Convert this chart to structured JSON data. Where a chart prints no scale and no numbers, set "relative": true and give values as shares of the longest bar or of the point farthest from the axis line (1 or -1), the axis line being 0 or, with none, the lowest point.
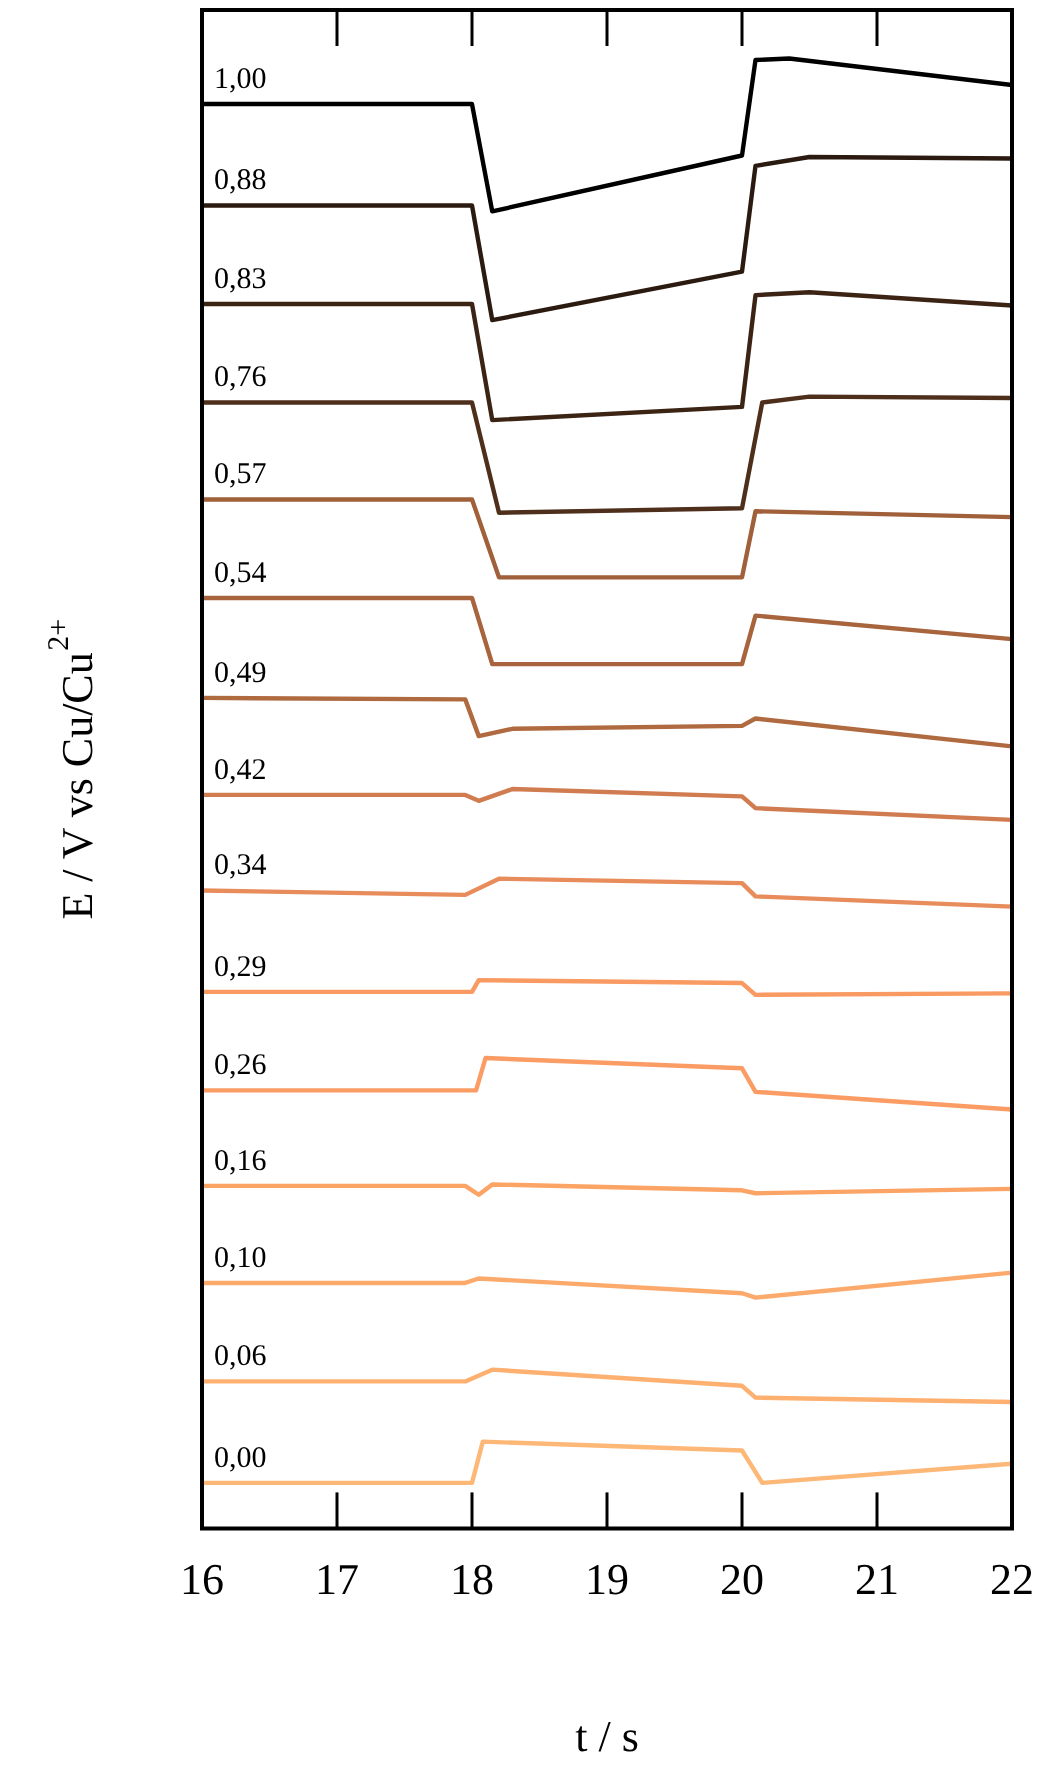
{
  "chart_data": {
    "type": "line",
    "xlabel": "t / s",
    "ylabel": "E / V vs Cu/Cu$^{2+}$",
    "relative": true,
    "xlim": [
      16,
      22
    ],
    "xticks": [
      16,
      17,
      18,
      19,
      20,
      21,
      22
    ],
    "grid": false,
    "marker": "none",
    "line_style": "solid",
    "series": [
      {
        "name": "1,00",
        "color": "#000000",
        "x": [
          16,
          18.0,
          18.15,
          20.0,
          20.1,
          20.35,
          22
        ],
        "values": [
          0.969,
          0.969,
          0.896,
          0.934,
          0.999,
          1.0,
          0.982
        ]
      },
      {
        "name": "0,88",
        "color": "#2a1a10",
        "x": [
          16,
          18.0,
          18.15,
          20.0,
          20.1,
          20.5,
          22
        ],
        "values": [
          0.9,
          0.9,
          0.822,
          0.855,
          0.927,
          0.933,
          0.932
        ]
      },
      {
        "name": "0,83",
        "color": "#3c2414",
        "x": [
          16,
          18.0,
          18.15,
          20.0,
          20.1,
          20.5,
          22
        ],
        "values": [
          0.833,
          0.833,
          0.754,
          0.763,
          0.839,
          0.841,
          0.832
        ]
      },
      {
        "name": "0,76",
        "color": "#4e2f1c",
        "x": [
          16,
          18.0,
          18.2,
          20.0,
          20.15,
          20.5,
          22
        ],
        "values": [
          0.766,
          0.766,
          0.691,
          0.694,
          0.766,
          0.77,
          0.769
        ]
      },
      {
        "name": "0,57",
        "color": "#a0603a",
        "x": [
          16,
          18.0,
          18.2,
          20.0,
          20.1,
          22
        ],
        "values": [
          0.7,
          0.7,
          0.647,
          0.647,
          0.692,
          0.688
        ]
      },
      {
        "name": "0,54",
        "color": "#a8643c",
        "x": [
          16,
          18.0,
          18.15,
          20.0,
          20.1,
          22
        ],
        "values": [
          0.633,
          0.633,
          0.588,
          0.588,
          0.621,
          0.605
        ]
      },
      {
        "name": "0,49",
        "color": "#b06a40",
        "x": [
          16,
          17.95,
          18.05,
          18.3,
          20.0,
          20.1,
          22
        ],
        "values": [
          0.565,
          0.564,
          0.539,
          0.544,
          0.546,
          0.551,
          0.532
        ]
      },
      {
        "name": "0,42",
        "color": "#d07c50",
        "x": [
          16,
          17.95,
          18.05,
          18.3,
          20.0,
          20.1,
          22
        ],
        "values": [
          0.499,
          0.499,
          0.495,
          0.503,
          0.498,
          0.49,
          0.482
        ]
      },
      {
        "name": "0,34",
        "color": "#e88c5c",
        "x": [
          16,
          17.95,
          18.2,
          20.0,
          20.1,
          22
        ],
        "values": [
          0.434,
          0.431,
          0.442,
          0.439,
          0.43,
          0.423
        ]
      },
      {
        "name": "0,29",
        "color": "#f89a62",
        "x": [
          16,
          18.0,
          18.05,
          20.0,
          20.1,
          22
        ],
        "values": [
          0.365,
          0.365,
          0.373,
          0.371,
          0.363,
          0.364
        ]
      },
      {
        "name": "0,26",
        "color": "#fb9c64",
        "x": [
          16,
          18.03,
          18.1,
          20.0,
          20.1,
          22
        ],
        "values": [
          0.298,
          0.298,
          0.32,
          0.313,
          0.297,
          0.285
        ]
      },
      {
        "name": "0,16",
        "color": "#fca466",
        "x": [
          16,
          17.95,
          18.05,
          18.15,
          20.0,
          20.1,
          22
        ],
        "values": [
          0.233,
          0.233,
          0.227,
          0.234,
          0.23,
          0.228,
          0.231
        ]
      },
      {
        "name": "0,10",
        "color": "#fcaa6c",
        "x": [
          16,
          17.95,
          18.05,
          20.0,
          20.1,
          22
        ],
        "values": [
          0.167,
          0.167,
          0.17,
          0.16,
          0.157,
          0.174
        ]
      },
      {
        "name": "0,06",
        "color": "#fdb070",
        "x": [
          16,
          17.95,
          18.15,
          20.0,
          20.1,
          22
        ],
        "values": [
          0.1,
          0.1,
          0.108,
          0.097,
          0.089,
          0.086
        ]
      },
      {
        "name": "0,00",
        "color": "#fdb878",
        "x": [
          16,
          18.0,
          18.08,
          20.0,
          20.15,
          22
        ],
        "values": [
          0.031,
          0.031,
          0.059,
          0.053,
          0.031,
          0.044
        ]
      }
    ]
  }
}
